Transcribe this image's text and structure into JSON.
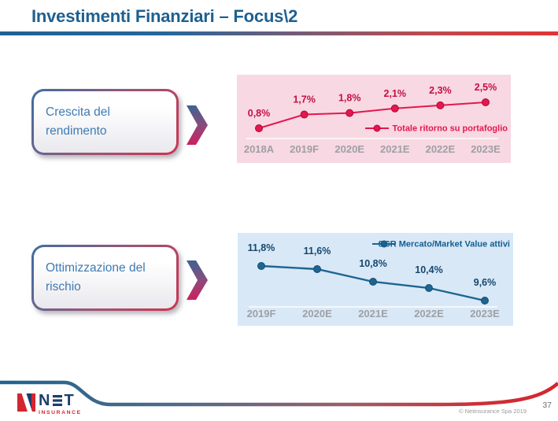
{
  "header": {
    "title": "Investimenti Finanziari – Focus\\2"
  },
  "callouts": [
    {
      "label": "Crescita del rendimento"
    },
    {
      "label": "Ottimizzazione del rischio"
    }
  ],
  "chart_data": [
    {
      "type": "line",
      "categories": [
        "2018A",
        "2019F",
        "2020E",
        "2021E",
        "2022E",
        "2023E"
      ],
      "series": [
        {
          "name": "Totale ritorno su portafoglio",
          "values": [
            0.8,
            1.7,
            1.8,
            2.1,
            2.3,
            2.5
          ]
        }
      ],
      "value_labels": [
        "0,8%",
        "1,7%",
        "1,8%",
        "2,1%",
        "2,3%",
        "2,5%"
      ],
      "unit": "%",
      "grid": false,
      "legend_position": "inside-middle-right",
      "background": "#F8D8E2",
      "line_color": "#E4174E",
      "marker_edge": "#AD0A3C",
      "label_color": "#C50E45",
      "legend_color": "#E4174E",
      "axis_label_color": "#9EA0A5"
    },
    {
      "type": "line",
      "categories": [
        "2019F",
        "2020E",
        "2021E",
        "2022E",
        "2023E"
      ],
      "series": [
        {
          "name": "SCR Mercato/Market Value attivi",
          "values": [
            11.8,
            11.6,
            10.8,
            10.4,
            9.6
          ]
        }
      ],
      "value_labels": [
        "11,8%",
        "11,6%",
        "10,8%",
        "10,4%",
        "9,6%"
      ],
      "unit": "%",
      "grid": false,
      "legend_position": "inside-top-right",
      "background": "#D9E8F6",
      "line_color": "#1E6590",
      "marker_edge": "#134F75",
      "label_color": "#15476F",
      "legend_color": "#135E93",
      "axis_label_color": "#9EA0A5"
    }
  ],
  "footer": {
    "copyright": "© Netinsurance Spa 2019",
    "page_number": "37",
    "logo": {
      "n": "N",
      "t": "T",
      "subtitle": "INSURANCE"
    }
  },
  "colors": {
    "title_blue": "#1E6091",
    "callout_text_blue": "#3F7BB3",
    "accent_blue": "#1F6391",
    "accent_red": "#D62B2B",
    "logo_blue": "#1C3E6B",
    "logo_red": "#D22630"
  }
}
